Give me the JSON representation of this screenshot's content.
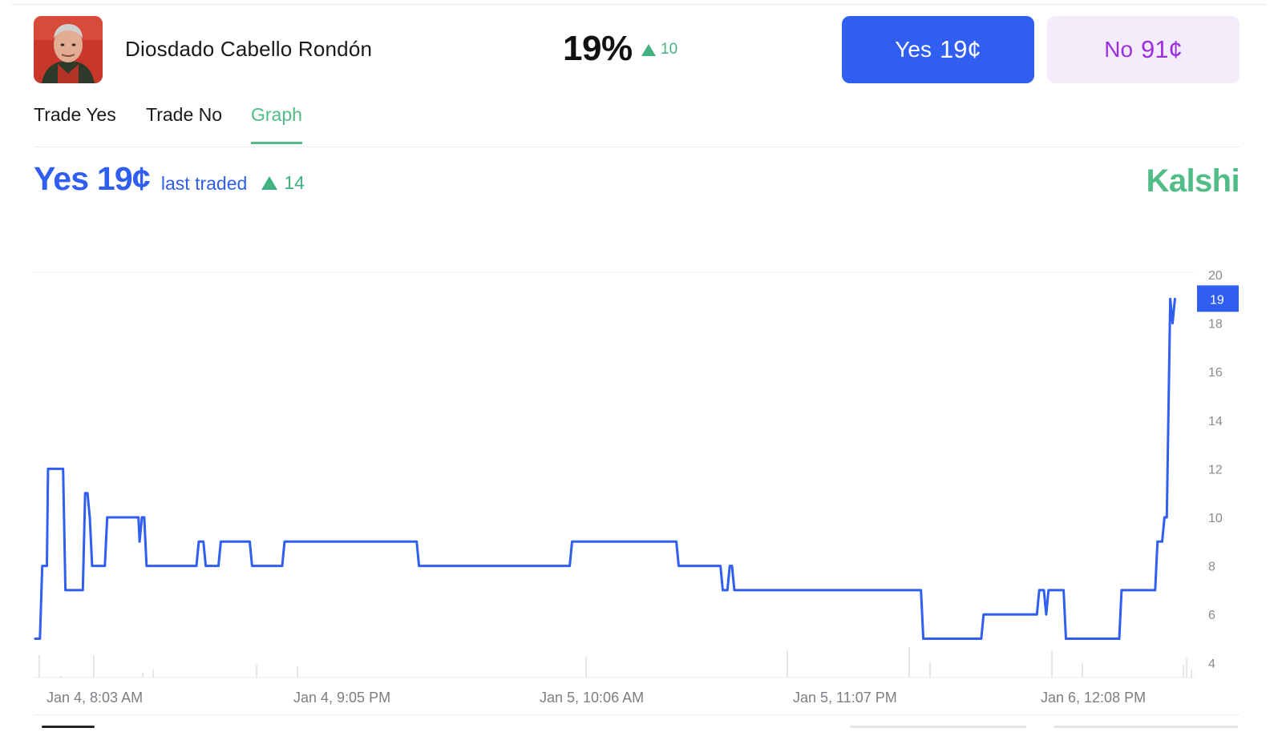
{
  "market": {
    "name": "Diosdado Cabello Rondón",
    "chance": "19%",
    "chance_change": "10",
    "yes_label": "Yes",
    "yes_price": "19¢",
    "no_label": "No",
    "no_price": "91¢"
  },
  "tabs": [
    {
      "label": "Trade Yes",
      "active": false
    },
    {
      "label": "Trade No",
      "active": false
    },
    {
      "label": "Graph",
      "active": true
    }
  ],
  "graph_header": {
    "yes_price": "Yes 19¢",
    "last_traded": "last traded",
    "change": "14",
    "brand": "Kalshi"
  },
  "colors": {
    "line": "#2f5ef0",
    "up": "#3fb27f",
    "brand": "#4fbd85",
    "no": "#9b2fe0"
  },
  "icons": {
    "change_up": "triangle-up-icon",
    "avatar": "person-avatar"
  },
  "chart_data": {
    "type": "line",
    "x_tick_labels": [
      "Jan 4, 8:03 AM",
      "Jan 4, 9:05 PM",
      "Jan 5, 10:06 AM",
      "Jan 5, 11:07 PM",
      "Jan 6, 12:08 PM"
    ],
    "y_ticks": [
      4,
      6,
      8,
      10,
      12,
      14,
      16,
      18,
      20
    ],
    "ylim": [
      3.4,
      20.1
    ],
    "current_value": 19,
    "current_label": "19",
    "grid": false,
    "series": [
      {
        "values": [
          [
            0.0,
            5
          ],
          [
            0.4,
            5
          ],
          [
            0.6,
            8
          ],
          [
            1.0,
            8
          ],
          [
            1.1,
            12
          ],
          [
            2.4,
            12
          ],
          [
            2.6,
            7
          ],
          [
            4.1,
            7
          ],
          [
            4.3,
            11
          ],
          [
            4.5,
            11
          ],
          [
            4.7,
            10
          ],
          [
            4.9,
            8
          ],
          [
            6.0,
            8
          ],
          [
            6.2,
            10
          ],
          [
            8.9,
            10
          ],
          [
            9.0,
            9
          ],
          [
            9.2,
            10
          ],
          [
            9.4,
            10
          ],
          [
            9.6,
            8
          ],
          [
            13.9,
            8
          ],
          [
            14.1,
            9
          ],
          [
            14.5,
            9
          ],
          [
            14.7,
            8
          ],
          [
            15.8,
            8
          ],
          [
            16.0,
            9
          ],
          [
            18.5,
            9
          ],
          [
            18.7,
            8
          ],
          [
            21.3,
            8
          ],
          [
            21.5,
            9
          ],
          [
            32.9,
            9
          ],
          [
            33.1,
            8
          ],
          [
            46.1,
            8
          ],
          [
            46.3,
            9
          ],
          [
            55.3,
            9
          ],
          [
            55.5,
            8
          ],
          [
            59.1,
            8
          ],
          [
            59.3,
            7
          ],
          [
            59.7,
            7
          ],
          [
            59.9,
            8
          ],
          [
            60.1,
            8
          ],
          [
            60.3,
            7
          ],
          [
            76.4,
            7
          ],
          [
            76.6,
            5
          ],
          [
            81.6,
            5
          ],
          [
            81.8,
            6
          ],
          [
            86.4,
            6
          ],
          [
            86.6,
            7
          ],
          [
            87.0,
            7
          ],
          [
            87.2,
            6
          ],
          [
            87.4,
            7
          ],
          [
            88.7,
            7
          ],
          [
            88.9,
            5
          ],
          [
            93.5,
            5
          ],
          [
            93.7,
            7
          ],
          [
            96.6,
            7
          ],
          [
            96.8,
            9
          ],
          [
            97.2,
            9
          ],
          [
            97.4,
            10
          ],
          [
            97.6,
            10
          ],
          [
            97.9,
            19
          ],
          [
            98.1,
            18
          ],
          [
            98.3,
            19
          ]
        ]
      }
    ]
  }
}
